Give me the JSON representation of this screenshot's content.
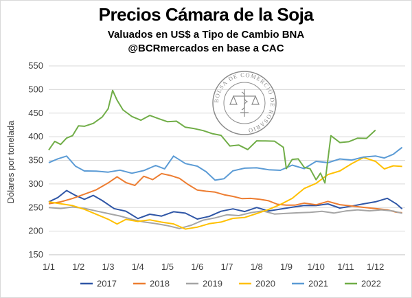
{
  "header": {
    "title": "Precios Cámara de la Soja",
    "subtitle": "Valuados en US$ a Tipo de Cambio BNA",
    "subtitle2": "@BCRmercados en base a CAC"
  },
  "logo": {
    "text": "BOLSA DE COMERCIO DE ROSARIO"
  },
  "chart_data": {
    "type": "line",
    "ylabel": "Dólares por tonelada",
    "xlabel": "",
    "ylim": [
      150,
      550
    ],
    "yticks": [
      150,
      200,
      250,
      300,
      350,
      400,
      450,
      500,
      550
    ],
    "xlim": [
      1,
      13
    ],
    "xticks": [
      "1/1",
      "1/2",
      "1/3",
      "1/4",
      "1/5",
      "1/6",
      "1/7",
      "1/8",
      "1/9",
      "1/10",
      "1/11",
      "1/12"
    ],
    "grid": "horizontal",
    "legend": "bottom",
    "series": [
      {
        "name": "2017",
        "color": "#2f56a6",
        "x": [
          1,
          1.3,
          1.6,
          1.9,
          2.2,
          2.5,
          2.8,
          3.2,
          3.6,
          4.0,
          4.4,
          4.8,
          5.2,
          5.6,
          6.0,
          6.4,
          6.8,
          7.2,
          7.6,
          8.0,
          8.4,
          8.8,
          9.2,
          9.6,
          10.0,
          10.4,
          10.8,
          11.2,
          11.6,
          12.0,
          12.4,
          12.7,
          12.9
        ],
        "values": [
          262,
          268,
          285,
          278,
          270,
          275,
          262,
          245,
          240,
          225,
          235,
          232,
          242,
          240,
          228,
          234,
          245,
          250,
          244,
          252,
          244,
          247,
          250,
          253,
          252,
          255,
          246,
          250,
          255,
          260,
          268,
          255,
          250
        ]
      },
      {
        "name": "2018",
        "color": "#ed7d31",
        "x": [
          1,
          1.4,
          1.8,
          2.2,
          2.6,
          3.0,
          3.3,
          3.6,
          3.9,
          4.2,
          4.5,
          4.8,
          5.1,
          5.4,
          5.7,
          6.0,
          6.3,
          6.6,
          6.9,
          7.2,
          7.5,
          7.8,
          8.1,
          8.4,
          8.7,
          9.0,
          9.3,
          9.6,
          10.0,
          10.4,
          10.8,
          11.2,
          11.6,
          12.0,
          12.4,
          12.7,
          12.9
        ],
        "values": [
          258,
          262,
          270,
          280,
          290,
          305,
          315,
          300,
          295,
          318,
          312,
          322,
          315,
          310,
          300,
          290,
          285,
          280,
          275,
          275,
          272,
          270,
          265,
          262,
          258,
          258,
          256,
          257,
          254,
          262,
          256,
          254,
          252,
          250,
          248,
          240,
          238
        ]
      },
      {
        "name": "2019",
        "color": "#a5a5a5",
        "x": [
          1,
          1.4,
          1.8,
          2.2,
          2.6,
          3.0,
          3.4,
          3.8,
          4.2,
          4.6,
          5.0,
          5.4,
          5.8,
          6.2,
          6.6,
          7.0,
          7.4,
          7.8,
          8.2,
          8.6,
          9.0,
          9.4,
          9.8,
          10.2,
          10.6,
          11.0,
          11.4,
          11.8,
          12.2,
          12.6,
          12.9
        ],
        "values": [
          250,
          248,
          252,
          250,
          245,
          240,
          235,
          228,
          222,
          218,
          213,
          206,
          212,
          222,
          226,
          232,
          230,
          236,
          240,
          234,
          236,
          238,
          240,
          243,
          240,
          245,
          248,
          246,
          248,
          245,
          240
        ]
      },
      {
        "name": "2020",
        "color": "#ffc000",
        "x": [
          1,
          1.4,
          1.8,
          2.2,
          2.6,
          3.0,
          3.3,
          3.6,
          4.0,
          4.4,
          4.8,
          5.2,
          5.6,
          6.0,
          6.4,
          6.8,
          7.2,
          7.6,
          8.0,
          8.4,
          8.8,
          9.2,
          9.6,
          10.0,
          10.4,
          10.8,
          11.2,
          11.6,
          12.0,
          12.3,
          12.6,
          12.9
        ],
        "values": [
          262,
          258,
          255,
          248,
          238,
          228,
          215,
          222,
          218,
          222,
          218,
          215,
          205,
          210,
          218,
          222,
          230,
          232,
          240,
          248,
          258,
          270,
          290,
          300,
          318,
          325,
          340,
          353,
          345,
          330,
          340,
          340
        ]
      },
      {
        "name": "2021",
        "color": "#5b9bd5",
        "x": [
          1,
          1.3,
          1.6,
          1.9,
          2.2,
          2.6,
          3.0,
          3.4,
          3.8,
          4.2,
          4.6,
          4.9,
          5.2,
          5.6,
          6.0,
          6.3,
          6.6,
          6.9,
          7.2,
          7.6,
          8.0,
          8.4,
          8.8,
          9.2,
          9.6,
          10.0,
          10.4,
          10.8,
          11.2,
          11.6,
          12.0,
          12.3,
          12.6,
          12.9
        ],
        "values": [
          345,
          350,
          358,
          340,
          330,
          330,
          328,
          332,
          325,
          330,
          340,
          335,
          360,
          345,
          340,
          325,
          305,
          310,
          330,
          335,
          335,
          330,
          328,
          338,
          330,
          345,
          342,
          350,
          348,
          355,
          358,
          352,
          362,
          380
        ]
      },
      {
        "name": "2022",
        "color": "#70ad47",
        "x": [
          1,
          1.2,
          1.4,
          1.6,
          1.8,
          2.0,
          2.2,
          2.5,
          2.8,
          3.0,
          3.15,
          3.3,
          3.5,
          3.8,
          4.1,
          4.4,
          4.7,
          5.0,
          5.3,
          5.6,
          5.9,
          6.2,
          6.5,
          6.8,
          7.1,
          7.4,
          7.7,
          8.0,
          8.3,
          8.6,
          8.9,
          9.0,
          9.2,
          9.4,
          9.6,
          9.8,
          10.0,
          10.15,
          10.3,
          10.5,
          10.8,
          11.1,
          11.4,
          11.7,
          12.0
        ],
        "values": [
          372,
          390,
          385,
          395,
          405,
          420,
          425,
          430,
          440,
          460,
          500,
          480,
          455,
          440,
          435,
          448,
          440,
          430,
          430,
          420,
          420,
          415,
          405,
          400,
          380,
          385,
          375,
          390,
          388,
          390,
          380,
          330,
          355,
          350,
          338,
          330,
          310,
          325,
          305,
          400,
          385,
          390,
          400,
          398,
          412
        ]
      }
    ]
  }
}
